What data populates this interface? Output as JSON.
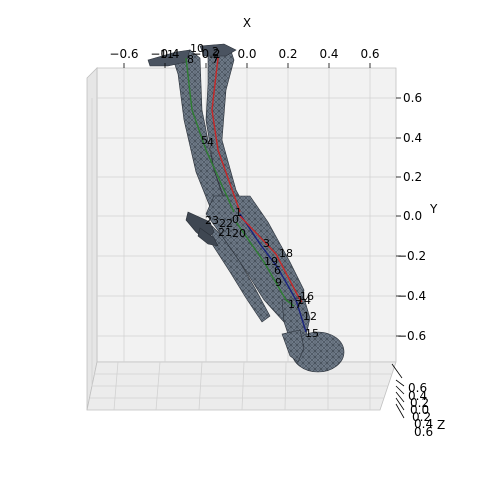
{
  "axes": {
    "x_label": "X",
    "y_label": "Y",
    "z_label": "Z",
    "x_ticks": [
      "−0.6",
      "−0.4",
      "−0.2",
      "0.0",
      "0.2",
      "0.4",
      "0.6"
    ],
    "y_ticks": [
      "0.6",
      "0.4",
      "0.2",
      "0.0",
      "−0.2",
      "−0.4",
      "−0.6"
    ],
    "z_ticks": [
      "0.6",
      "0.4",
      "0.2",
      "0.0",
      "0.2",
      "0.4",
      "0.6"
    ]
  },
  "joints": [
    "10",
    "11",
    "8",
    "2",
    "7",
    "5",
    "4",
    "1",
    "23",
    "22",
    "0",
    "21",
    "20",
    "3",
    "18",
    "19",
    "6",
    "9",
    "16",
    "14",
    "17",
    "12",
    "15"
  ],
  "colors": {
    "mesh_fill": "#6b7785",
    "mesh_edge": "#2a3038",
    "left_chain": "#2e7d32",
    "right_chain": "#c62828",
    "spine_chain": "#1a237e"
  }
}
